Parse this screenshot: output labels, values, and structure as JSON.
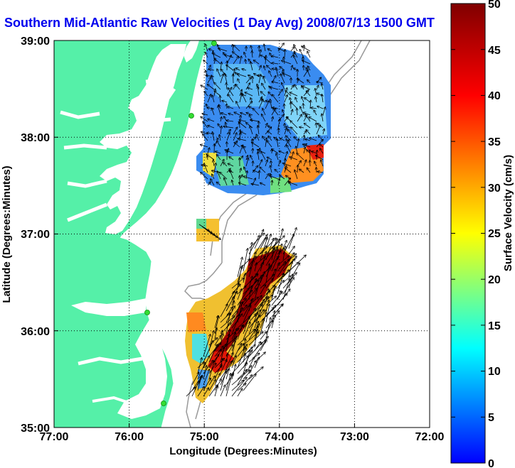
{
  "title": "Southern Mid-Atlantic Raw Velocities (1 Day Avg) 2008/07/13 1500 GMT",
  "xlabel": "Longitude (Degrees:Minutes)",
  "ylabel": "Latitude (Degrees:Minutes)",
  "colorbar_label": "Surface Velocity (cm/s)",
  "x_ticks": [
    "77:00",
    "76:00",
    "75:00",
    "74:00",
    "73:00",
    "72:00"
  ],
  "y_ticks": [
    "39:00",
    "38:00",
    "37:00",
    "36:00",
    "35:00"
  ],
  "colorbar_ticks": [
    "50",
    "45",
    "40",
    "35",
    "30",
    "25",
    "20",
    "15",
    "10",
    "5",
    "0"
  ],
  "colors": {
    "land": "#55f0a8",
    "water": "#ffffff",
    "title": "#0000ee",
    "station": "#33dd33",
    "colormap": [
      "#0000ff",
      "#00ffff",
      "#ffff00",
      "#ff0000",
      "#800000"
    ]
  },
  "chart_data": {
    "type": "map",
    "xlim": [
      -77,
      -72
    ],
    "ylim": [
      35,
      39
    ],
    "colorbar_range": [
      0,
      50
    ],
    "grid": true,
    "stations": [
      {
        "lon": -75.1,
        "lat": 39.0
      },
      {
        "lon": -75.1,
        "lat": 38.22
      },
      {
        "lon": -75.73,
        "lat": 36.18
      },
      {
        "lon": -75.53,
        "lat": 35.25
      }
    ]
  }
}
